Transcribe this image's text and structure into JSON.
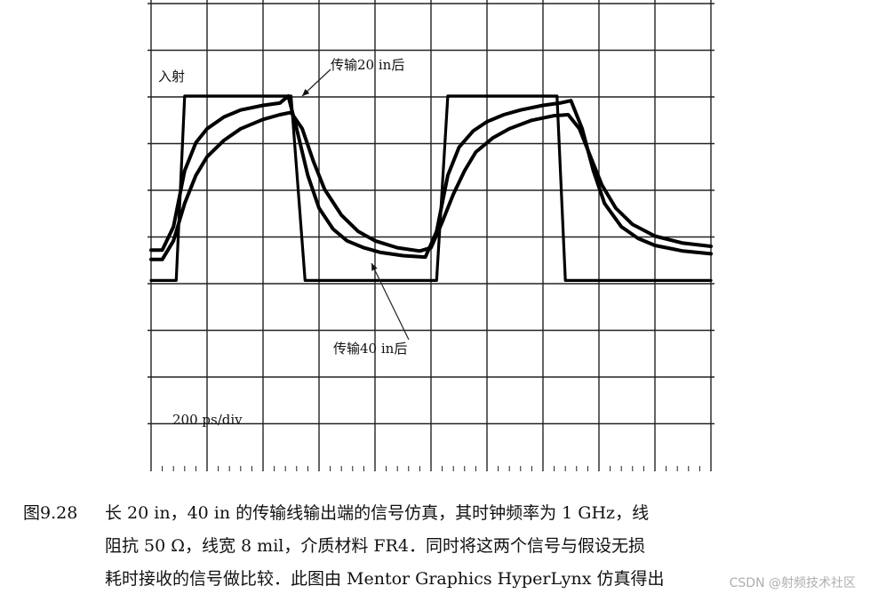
{
  "chart_data": {
    "type": "line",
    "title": "",
    "xlabel": "",
    "ylabel": "",
    "time_scale_label": "200 ps/div",
    "divisions": {
      "x": 10,
      "y": 9
    },
    "x_unit": "ps",
    "xlim": [
      0,
      2000
    ],
    "ylim": [
      0,
      9
    ],
    "annotations": [
      {
        "text": "入射",
        "target_series": "入射"
      },
      {
        "text": "传输20 in后",
        "target_series": "传输20 in后"
      },
      {
        "text": "传输40 in后",
        "target_series": "传输40 in后"
      }
    ],
    "series": [
      {
        "name": "入射",
        "x": [
          0,
          90,
          120,
          470,
          500,
          550,
          980,
          1020,
          1060,
          1120,
          1450,
          1480,
          1550,
          2000
        ],
        "y": [
          4.05,
          4.05,
          8.0,
          8.0,
          8.0,
          4.05,
          4.05,
          4.05,
          8.0,
          8.0,
          8.0,
          4.05,
          4.05,
          4.05
        ]
      },
      {
        "name": "传输20 in后",
        "x": [
          0,
          40,
          80,
          120,
          160,
          200,
          260,
          320,
          400,
          460,
          490,
          520,
          560,
          600,
          650,
          700,
          760,
          820,
          900,
          980,
          1020,
          1060,
          1100,
          1150,
          1200,
          1260,
          1320,
          1400,
          1460,
          1500,
          1540,
          1580,
          1620,
          1680,
          1740,
          1800,
          1900,
          2000
        ],
        "y": [
          4.7,
          4.7,
          5.2,
          6.4,
          7.0,
          7.3,
          7.55,
          7.7,
          7.8,
          7.85,
          8.0,
          7.3,
          6.3,
          5.6,
          5.15,
          4.9,
          4.75,
          4.65,
          4.58,
          4.55,
          5.1,
          6.3,
          6.9,
          7.25,
          7.45,
          7.6,
          7.7,
          7.8,
          7.85,
          7.9,
          7.3,
          6.4,
          5.7,
          5.2,
          4.95,
          4.8,
          4.68,
          4.62
        ]
      },
      {
        "name": "传输40 in后",
        "x": [
          0,
          40,
          80,
          120,
          160,
          200,
          260,
          320,
          400,
          460,
          500,
          540,
          580,
          620,
          680,
          740,
          800,
          880,
          960,
          1000,
          1040,
          1080,
          1120,
          1160,
          1220,
          1280,
          1360,
          1440,
          1490,
          1530,
          1570,
          1610,
          1660,
          1720,
          1800,
          1900,
          2000
        ],
        "y": [
          4.5,
          4.5,
          4.9,
          5.7,
          6.3,
          6.7,
          7.05,
          7.3,
          7.5,
          7.6,
          7.65,
          7.3,
          6.6,
          6.0,
          5.45,
          5.1,
          4.9,
          4.75,
          4.68,
          4.75,
          5.3,
          5.9,
          6.4,
          6.8,
          7.1,
          7.3,
          7.48,
          7.58,
          7.6,
          7.3,
          6.7,
          6.1,
          5.6,
          5.25,
          5.0,
          4.85,
          4.78
        ]
      }
    ]
  },
  "caption": {
    "figure_number": "图9.28",
    "lines": [
      "长 20 in，40 in 的传输线输出端的信号仿真，其时钟频率为 1 GHz，线",
      "阻抗 50 Ω，线宽 8 mil，介质材料 FR4．同时将这两个信号与假设无损",
      "耗时接收的信号做比较．此图由 Mentor Graphics HyperLynx 仿真得出"
    ]
  },
  "watermark": "CSDN @射频技术社区"
}
